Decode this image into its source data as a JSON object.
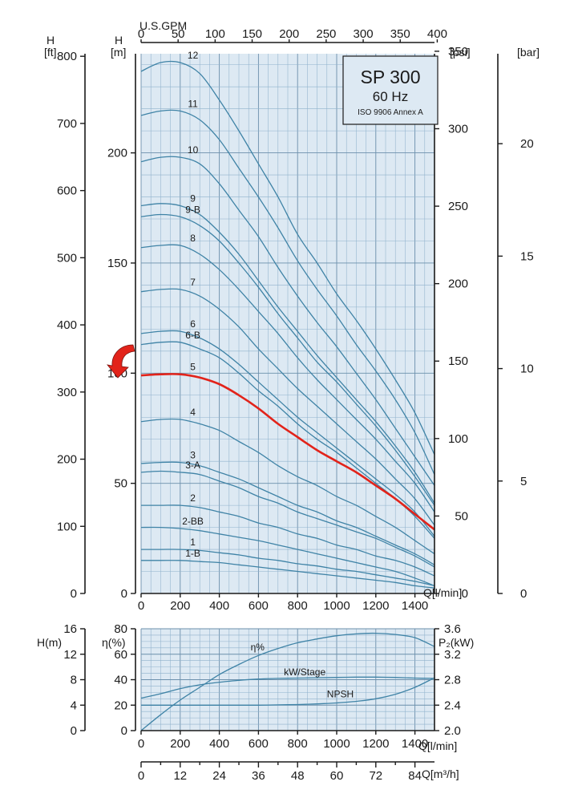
{
  "title": {
    "model": "SP 300",
    "frequency": "60 Hz",
    "standard": "ISO 9906 Annex A"
  },
  "colors": {
    "plot_bg": "#dde9f3",
    "curve": "#3f83a6",
    "highlight": "#e2231a",
    "grid": "#8fb2cc"
  },
  "highlight_icon": "curved-arrow-icon",
  "chart_data": [
    {
      "type": "line",
      "name": "head-curves",
      "x_axis_label": "Q[l/min]",
      "x_ticks": [
        "0",
        "200",
        "400",
        "600",
        "800",
        "1000",
        "1200",
        "1400"
      ],
      "xlim": [
        0,
        1500
      ],
      "top_axis": {
        "label": "U.S.GPM",
        "ticks": [
          "0",
          "50",
          "100",
          "150",
          "200",
          "250",
          "300",
          "350",
          "400"
        ],
        "factor_lpm_per_unit": 3.785
      },
      "y_left_m": {
        "label_top": "H",
        "label_unit": "[m]",
        "ticks": [
          "0",
          "50",
          "100",
          "150",
          "200"
        ],
        "ylim": [
          0,
          245
        ]
      },
      "y_left_ft": {
        "label_top": "H",
        "label_unit": "[ft]",
        "ticks": [
          "0",
          "100",
          "200",
          "300",
          "400",
          "500",
          "600",
          "700",
          "800"
        ],
        "max": 803.8
      },
      "y_right_psi": {
        "label_unit": "[psi]",
        "ticks": [
          "0",
          "50",
          "100",
          "150",
          "200",
          "250",
          "300",
          "350"
        ],
        "max": 348.4
      },
      "y_right_bar": {
        "label_unit": "[bar]",
        "ticks": [
          "0",
          "5",
          "10",
          "15",
          "20"
        ],
        "max": 24.0
      },
      "grid": true,
      "x": [
        0,
        100,
        200,
        300,
        400,
        500,
        600,
        700,
        800,
        900,
        1000,
        1100,
        1200,
        1300,
        1400,
        1500
      ],
      "series": [
        {
          "name": "12",
          "values": [
            237,
            241,
            241,
            236,
            224,
            210,
            195,
            180,
            163,
            150,
            136,
            124,
            111,
            97,
            82,
            63
          ]
        },
        {
          "name": "11",
          "values": [
            217,
            219,
            219,
            215,
            206,
            193,
            180,
            166,
            151,
            138,
            126,
            113,
            101,
            88,
            73,
            54
          ]
        },
        {
          "name": "10",
          "values": [
            196,
            198,
            198,
            195,
            186,
            174,
            162,
            148,
            135,
            123,
            112,
            100,
            88,
            75,
            62,
            49
          ]
        },
        {
          "name": "9",
          "values": [
            176,
            177,
            176,
            172,
            164,
            154,
            142,
            130,
            119,
            108,
            98,
            88,
            78,
            67,
            55,
            41
          ]
        },
        {
          "name": "9-B",
          "values": [
            171,
            172,
            171,
            167,
            160,
            150,
            139,
            127,
            116,
            105,
            96,
            86,
            76,
            65,
            53,
            40
          ]
        },
        {
          "name": "8",
          "values": [
            157,
            158,
            158,
            154,
            147,
            138,
            128,
            118,
            107,
            97,
            88,
            79,
            70,
            60,
            50,
            37
          ]
        },
        {
          "name": "7",
          "values": [
            137,
            138,
            138,
            135,
            129,
            121,
            111,
            102,
            93,
            85,
            77,
            69,
            61,
            52,
            43,
            31
          ]
        },
        {
          "name": "6",
          "values": [
            118,
            119,
            119,
            116,
            111,
            104,
            96,
            88,
            80,
            73,
            66,
            59,
            52,
            45,
            37,
            26
          ]
        },
        {
          "name": "6-B",
          "values": [
            113,
            114,
            114,
            111,
            107,
            100,
            92,
            85,
            77,
            70,
            64,
            57,
            50,
            43,
            35,
            25
          ]
        },
        {
          "name": "5",
          "values": [
            99,
            99.5,
            99.5,
            98,
            95,
            90,
            84,
            77,
            71,
            65,
            60,
            55,
            49,
            43,
            36,
            29
          ]
        },
        {
          "name": "4",
          "values": [
            78,
            79,
            79,
            77,
            74,
            69,
            64,
            58,
            53,
            49,
            44,
            40,
            35,
            30,
            24,
            18
          ]
        },
        {
          "name": "3",
          "values": [
            59,
            59.5,
            59.5,
            58,
            55,
            52,
            48,
            44,
            40,
            37,
            33,
            30,
            26,
            22,
            18,
            13
          ]
        },
        {
          "name": "3-A",
          "values": [
            55,
            55.5,
            55,
            54,
            51,
            48,
            44,
            41,
            37,
            34,
            31,
            28,
            25,
            21,
            17,
            12
          ]
        },
        {
          "name": "2",
          "values": [
            40,
            40,
            40,
            39,
            37,
            35,
            32,
            30,
            27,
            25,
            22,
            20,
            17,
            15,
            12,
            8
          ]
        },
        {
          "name": "2-BB",
          "values": [
            30,
            30,
            29.5,
            28.5,
            27,
            25.5,
            24,
            22,
            20,
            18,
            16,
            14,
            12,
            10,
            7,
            3.5
          ]
        },
        {
          "name": "1",
          "values": [
            20,
            20,
            20,
            19.5,
            18.5,
            17.5,
            16,
            15,
            13.5,
            12.5,
            11,
            10,
            8.5,
            7,
            5.5,
            3.5
          ]
        },
        {
          "name": "1-B",
          "values": [
            15,
            15,
            15,
            14.5,
            14,
            13,
            12,
            11,
            10,
            9,
            8,
            7,
            6,
            5,
            3.5,
            2.5
          ]
        }
      ],
      "highlighted_series": "5"
    },
    {
      "type": "line",
      "name": "efficiency-power-npsh",
      "x_axis_label": "Q[l/min]",
      "x_ticks": [
        "0",
        "200",
        "400",
        "600",
        "800",
        "1000",
        "1200",
        "1400"
      ],
      "xlim": [
        0,
        1500
      ],
      "y_left_npsh": {
        "label": "H(m)",
        "ticks": [
          "0",
          "4",
          "8",
          "12",
          "16"
        ],
        "ylim": [
          0,
          16
        ]
      },
      "y_left_eff": {
        "label": "η(%)",
        "ticks": [
          "0",
          "20",
          "40",
          "60",
          "80"
        ],
        "ylim": [
          0,
          80
        ]
      },
      "y_right_power": {
        "label": "P₂(kW)",
        "ticks": [
          "2.0",
          "2.4",
          "2.8",
          "3.2",
          "3.6"
        ],
        "ylim": [
          2.0,
          3.6
        ]
      },
      "grid": true,
      "x": [
        0,
        100,
        200,
        300,
        400,
        500,
        600,
        700,
        800,
        900,
        1000,
        1100,
        1200,
        1300,
        1400,
        1500
      ],
      "series": [
        {
          "name": "η%",
          "axis": "eff",
          "values": [
            0,
            12.5,
            24,
            34,
            44,
            52,
            59,
            64.5,
            69,
            72,
            74.5,
            76,
            76.5,
            75.5,
            73,
            66
          ]
        },
        {
          "name": "kW/Stage",
          "axis": "power",
          "values": [
            2.51,
            2.58,
            2.66,
            2.72,
            2.76,
            2.79,
            2.81,
            2.82,
            2.825,
            2.83,
            2.835,
            2.84,
            2.84,
            2.835,
            2.825,
            2.82
          ]
        },
        {
          "name": "NPSH",
          "axis": "npsh",
          "values": [
            4.0,
            4.0,
            4.0,
            4.0,
            4.0,
            4.0,
            4.0,
            4.05,
            4.1,
            4.2,
            4.35,
            4.6,
            5.0,
            5.7,
            6.8,
            8.3
          ]
        }
      ],
      "series_labels": {
        "eff": "η%",
        "power": "kW/Stage",
        "npsh": "NPSH"
      }
    },
    {
      "type": "axis",
      "name": "flow-m3h",
      "x_axis_label": "Q[m³/h]",
      "ticks": [
        "0",
        "12",
        "24",
        "36",
        "48",
        "60",
        "72",
        "84"
      ],
      "factor_lpm_per_unit": 16.667
    }
  ]
}
